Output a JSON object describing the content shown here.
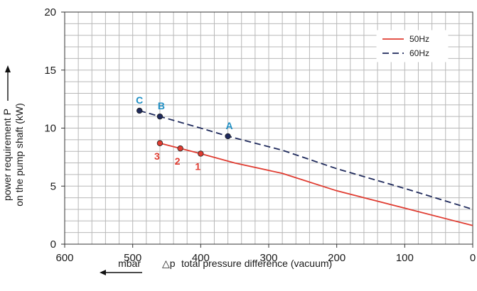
{
  "chart_data": {
    "type": "line",
    "xlabel_unit": "mbar",
    "xlabel_symbol": "△p",
    "xlabel": "total pressure difference (vacuum)",
    "ylabel_line1": "power requirement P",
    "ylabel_line2": "on the pump shaft (kW)",
    "xlim": [
      600,
      0
    ],
    "ylim": [
      0,
      20
    ],
    "x_ticks": [
      600,
      500,
      400,
      300,
      200,
      100,
      0
    ],
    "y_ticks": [
      0,
      5,
      10,
      15,
      20
    ],
    "x_tick_labels": [
      "600",
      "500",
      "400",
      "300",
      "200",
      "100",
      "0"
    ],
    "y_tick_labels": [
      "0",
      "5",
      "10",
      "15",
      "20"
    ],
    "grid": true,
    "legend_position": "top-right",
    "series": [
      {
        "name": "50Hz",
        "color": "#e03c31",
        "style": "solid",
        "x": [
          460,
          430,
          400,
          350,
          280,
          200,
          100,
          0
        ],
        "y": [
          8.7,
          8.25,
          7.8,
          7.0,
          6.1,
          4.6,
          3.1,
          1.6
        ]
      },
      {
        "name": "60Hz",
        "color": "#1f2a5c",
        "style": "dashed",
        "x": [
          490,
          460,
          400,
          360,
          280,
          200,
          100,
          0
        ],
        "y": [
          11.5,
          11.0,
          10.0,
          9.3,
          8.1,
          6.5,
          4.8,
          3.0
        ]
      }
    ],
    "annotations": [
      {
        "label": "1",
        "x": 400,
        "y": 7.8,
        "series": 0,
        "color": "#e03c31"
      },
      {
        "label": "2",
        "x": 430,
        "y": 8.25,
        "series": 0,
        "color": "#e03c31"
      },
      {
        "label": "3",
        "x": 460,
        "y": 8.7,
        "series": 0,
        "color": "#e03c31"
      },
      {
        "label": "A",
        "x": 360,
        "y": 9.3,
        "series": 1,
        "color": "#1f8fc4"
      },
      {
        "label": "B",
        "x": 460,
        "y": 11.0,
        "series": 1,
        "color": "#1f8fc4"
      },
      {
        "label": "C",
        "x": 490,
        "y": 11.5,
        "series": 1,
        "color": "#1f8fc4"
      }
    ]
  }
}
